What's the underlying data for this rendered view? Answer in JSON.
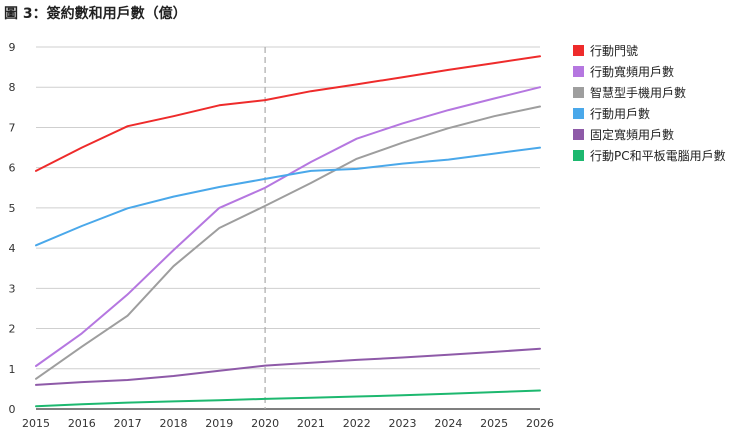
{
  "chart_data": {
    "type": "line",
    "title": "圖 3：簽約數和用戶數（億）",
    "xlabel": "",
    "ylabel": "",
    "x": [
      2015,
      2016,
      2017,
      2018,
      2019,
      2020,
      2021,
      2022,
      2023,
      2024,
      2025,
      2026
    ],
    "xlim": [
      2015,
      2026
    ],
    "ylim": [
      0,
      9
    ],
    "y_ticks": [
      0,
      1,
      2,
      3,
      4,
      5,
      6,
      7,
      8,
      9
    ],
    "grid": "horizontal",
    "reference_line": {
      "x": 2020,
      "style": "dashed"
    },
    "legend_position": "right",
    "series": [
      {
        "name": "行動門號",
        "color": "#ee2b2b",
        "values": [
          5.92,
          6.5,
          7.03,
          7.28,
          7.55,
          7.68,
          7.9,
          8.07,
          8.25,
          8.43,
          8.6,
          8.77
        ]
      },
      {
        "name": "行動寬頻用戶數",
        "color": "#b577e0",
        "values": [
          1.07,
          1.88,
          2.85,
          3.95,
          5.0,
          5.5,
          6.14,
          6.72,
          7.1,
          7.43,
          7.72,
          8.0
        ]
      },
      {
        "name": "智慧型手機用戶數",
        "color": "#9e9e9e",
        "values": [
          0.75,
          1.55,
          2.32,
          3.55,
          4.5,
          5.05,
          5.62,
          6.22,
          6.62,
          6.98,
          7.28,
          7.52
        ]
      },
      {
        "name": "行動用戶數",
        "color": "#4aa8ea",
        "values": [
          4.07,
          4.55,
          4.99,
          5.28,
          5.52,
          5.72,
          5.92,
          5.97,
          6.1,
          6.2,
          6.35,
          6.5
        ]
      },
      {
        "name": "固定寬頻用戶數",
        "color": "#8e5aa8",
        "values": [
          0.6,
          0.67,
          0.72,
          0.82,
          0.95,
          1.08,
          1.15,
          1.22,
          1.28,
          1.35,
          1.42,
          1.5
        ]
      },
      {
        "name": "行動PC和平板電腦用戶數",
        "color": "#1db86f",
        "values": [
          0.07,
          0.12,
          0.16,
          0.19,
          0.22,
          0.25,
          0.28,
          0.31,
          0.34,
          0.38,
          0.42,
          0.46
        ]
      }
    ]
  }
}
